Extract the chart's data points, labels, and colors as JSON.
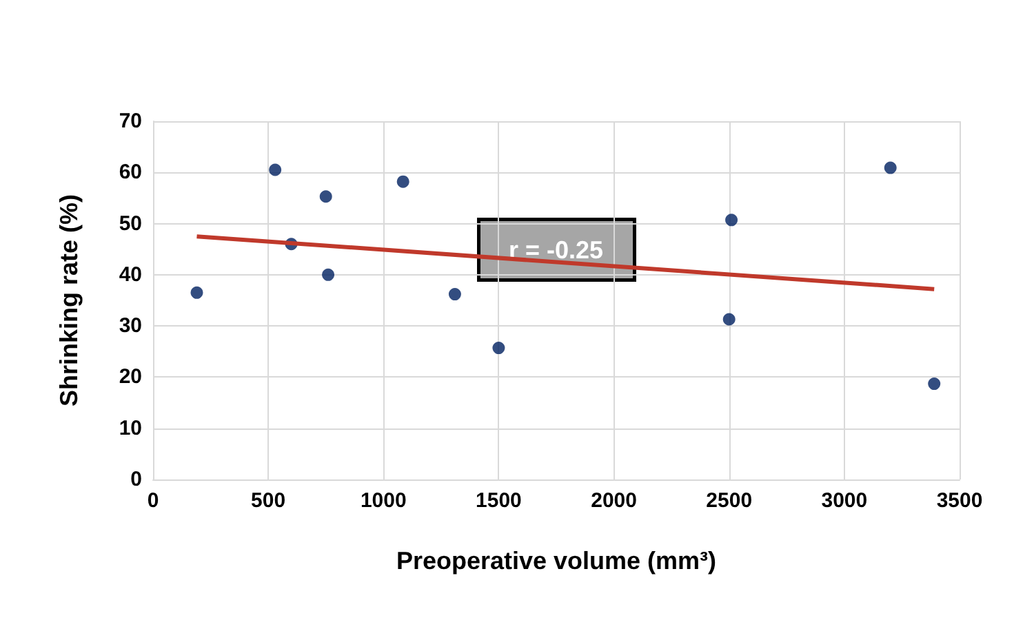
{
  "chart_data": {
    "type": "scatter",
    "xlabel": "Preoperative volume (mm³)",
    "ylabel": "Shrinking rate (%)",
    "x": [
      190,
      530,
      600,
      750,
      760,
      1085,
      1310,
      1500,
      2500,
      2510,
      3200,
      3390
    ],
    "series": [
      {
        "color": "#002060",
        "marker": "circle",
        "values": [
          36.5,
          60.5,
          46,
          55.3,
          40,
          58.2,
          36.2,
          25.7,
          31.3,
          50.7,
          60.9,
          18.7
        ]
      },
      {
        "type": "line",
        "marker": "none",
        "color": "#c0392b",
        "x": [
          190,
          3390
        ],
        "values": [
          47.5,
          37.2
        ]
      }
    ],
    "xlim": [
      0,
      3500
    ],
    "xticks": [
      0,
      500,
      1000,
      1500,
      2000,
      2500,
      3000,
      3500
    ],
    "ylim": [
      0,
      70
    ],
    "yticks": [
      0,
      10,
      20,
      30,
      40,
      50,
      60,
      70
    ],
    "grid": true,
    "annotations": [
      "r = -0.25"
    ]
  }
}
